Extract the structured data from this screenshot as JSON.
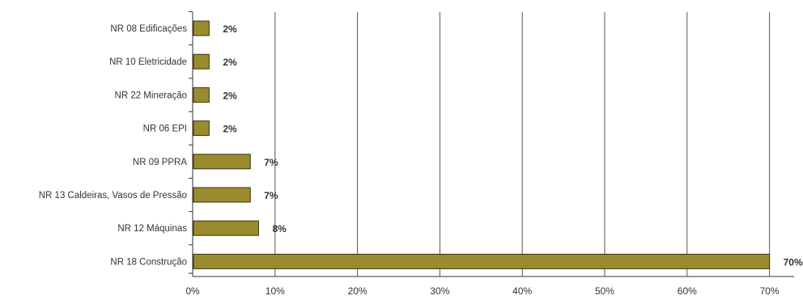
{
  "chart_data": {
    "type": "bar",
    "orientation": "horizontal",
    "categories": [
      "NR 08 Edificações",
      "NR 10 Eletricidade",
      "NR 22 Mineração",
      "NR 06 EPI",
      "NR 09 PPRA",
      "NR 13 Caldeiras, Vasos de Pressão",
      "NR 12 Máquinas",
      "NR 18 Construção"
    ],
    "values": [
      2,
      2,
      2,
      2,
      7,
      7,
      8,
      70
    ],
    "data_labels": [
      "2%",
      "2%",
      "2%",
      "2%",
      "7%",
      "7%",
      "8%",
      "70%"
    ],
    "ticks": [
      0,
      10,
      20,
      30,
      40,
      50,
      60,
      70
    ],
    "tick_labels": [
      "0%",
      "10%",
      "20%",
      "30%",
      "40%",
      "50%",
      "60%",
      "70%"
    ],
    "xlim": [
      0,
      73
    ],
    "grid": true,
    "title": "",
    "xlabel": "",
    "ylabel": "",
    "colors": {
      "bar_fill": "#9a8b2e",
      "bar_stroke": "#3d3410",
      "grid": "#555555",
      "axis": "#333333",
      "text": "#333333"
    }
  }
}
